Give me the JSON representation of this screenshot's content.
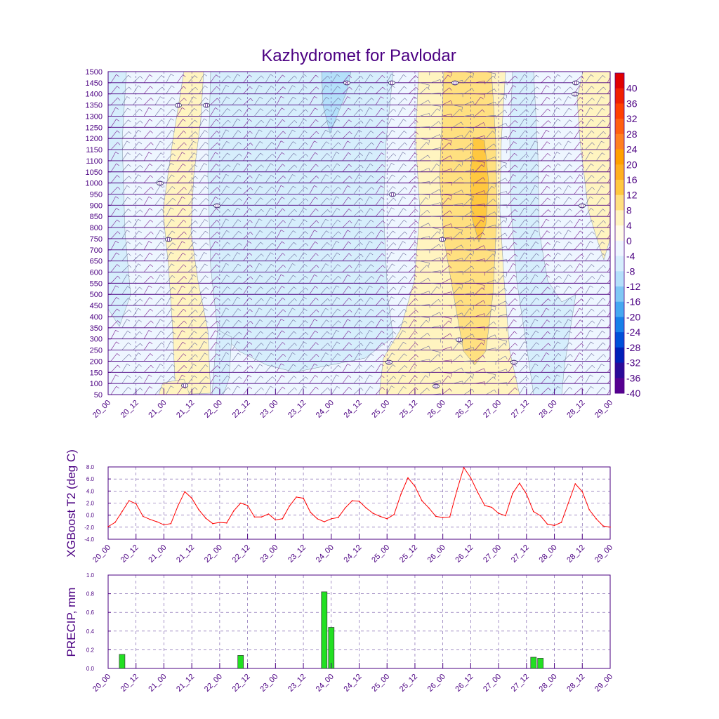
{
  "chart_data": [
    {
      "type": "heatmap",
      "title": "Kazhydromet for Pavlodar",
      "x_ticks": [
        "20_00",
        "20_12",
        "21_00",
        "21_12",
        "22_00",
        "22_12",
        "23_00",
        "23_12",
        "24_00",
        "24_12",
        "25_00",
        "25_12",
        "26_00",
        "26_12",
        "27_00",
        "27_12",
        "28_00",
        "28_12",
        "29_00"
      ],
      "y_ticks": [
        1500,
        1450,
        1400,
        1350,
        1300,
        1250,
        1200,
        1150,
        1100,
        1050,
        1000,
        950,
        900,
        850,
        800,
        750,
        700,
        650,
        600,
        550,
        500,
        450,
        400,
        350,
        300,
        250,
        200,
        150,
        100,
        50
      ],
      "ylim": [
        50,
        1500
      ],
      "colorbar_labels": [
        "40",
        "36",
        "32",
        "28",
        "24",
        "20",
        "16",
        "12",
        "8",
        "4",
        "0",
        "-4",
        "-8",
        "-12",
        "-16",
        "-20",
        "-24",
        "-28",
        "-32",
        "-36",
        "-40"
      ],
      "colorbar_colors": [
        "#e00000",
        "#f02000",
        "#ff4000",
        "#ff6010",
        "#ff8020",
        "#ffa000",
        "#ffb020",
        "#ffc840",
        "#ffe080",
        "#fff4c0",
        "#fffbe8",
        "#eef6ff",
        "#d6eefc",
        "#b4e0fa",
        "#80c8f4",
        "#46a8f0",
        "#1880e8",
        "#0050d8",
        "#0020b8",
        "#2a0a98",
        "#560090"
      ],
      "contour_labels": [
        "8",
        "0",
        "0",
        "0",
        "0",
        "0",
        "0",
        "0",
        "0",
        "0",
        "0",
        "8",
        "0",
        "0",
        "0",
        "0",
        "0",
        "0"
      ]
    },
    {
      "type": "line",
      "ylabel": "XGBoost T2 (deg C)",
      "ylim": [
        -4.0,
        8.0
      ],
      "y_ticks": [
        "8.0",
        "6.0",
        "4.0",
        "2.0",
        "0.0",
        "-2.0",
        "-4.0"
      ],
      "x_ticks": [
        "20_00",
        "20_12",
        "21_00",
        "21_12",
        "22_00",
        "22_12",
        "23_00",
        "23_12",
        "24_00",
        "24_12",
        "25_00",
        "25_12",
        "26_00",
        "26_12",
        "27_00",
        "27_12",
        "28_00",
        "28_12",
        "29_00"
      ],
      "series": [
        {
          "name": "T2",
          "color": "#ff0000",
          "x": [
            0,
            3,
            6,
            9,
            12,
            15,
            18,
            21,
            24,
            27,
            30,
            33,
            36,
            39,
            42,
            45,
            48,
            51,
            54,
            57,
            60,
            63,
            66,
            69,
            72,
            75,
            78,
            81,
            84,
            87,
            90,
            93,
            96,
            99,
            102,
            105,
            108,
            111,
            114,
            117,
            120,
            123,
            126,
            129,
            132,
            135,
            138,
            141,
            144,
            147,
            150,
            153,
            156,
            159,
            162,
            165,
            168,
            171,
            174,
            177,
            180,
            183,
            186,
            189,
            192,
            195,
            198,
            201,
            204,
            207,
            210,
            213,
            216
          ],
          "values": [
            -1.9,
            -1.2,
            0.6,
            2.4,
            1.9,
            -0.2,
            -0.7,
            -1.1,
            -1.6,
            -1.4,
            1.5,
            3.9,
            2.8,
            0.9,
            -0.5,
            -1.4,
            -1.2,
            -1.3,
            0.7,
            2.0,
            1.6,
            -0.3,
            -0.3,
            0.2,
            -0.8,
            -0.6,
            1.5,
            3.0,
            2.8,
            0.5,
            -0.6,
            -1.1,
            -0.6,
            -0.4,
            1.2,
            2.4,
            2.3,
            1.2,
            0.3,
            -0.2,
            -0.6,
            0.1,
            3.5,
            6.2,
            4.8,
            2.4,
            1.2,
            -0.2,
            -0.4,
            -0.3,
            4.0,
            7.9,
            6.2,
            3.8,
            1.6,
            1.3,
            0.3,
            -0.1,
            3.6,
            5.3,
            3.5,
            0.6,
            -0.1,
            -1.5,
            -1.7,
            -1.2,
            2.0,
            5.2,
            3.9,
            0.9,
            -0.6,
            -1.8,
            -2.0
          ]
        }
      ]
    },
    {
      "type": "bar",
      "ylabel": "PRECIP, mm",
      "ylim": [
        0.0,
        1.0
      ],
      "y_ticks": [
        "1.0",
        "0.8",
        "0.6",
        "0.4",
        "0.2",
        "0.0"
      ],
      "x_ticks": [
        "20_00",
        "20_12",
        "21_00",
        "21_12",
        "22_00",
        "22_12",
        "23_00",
        "23_12",
        "24_00",
        "24_12",
        "25_00",
        "25_12",
        "26_00",
        "26_12",
        "27_00",
        "27_12",
        "28_00",
        "28_12",
        "29_00"
      ],
      "color": "#22e022",
      "x": [
        6,
        57,
        93,
        96,
        183,
        186
      ],
      "values": [
        0.15,
        0.14,
        0.82,
        0.44,
        0.12,
        0.11
      ]
    }
  ]
}
